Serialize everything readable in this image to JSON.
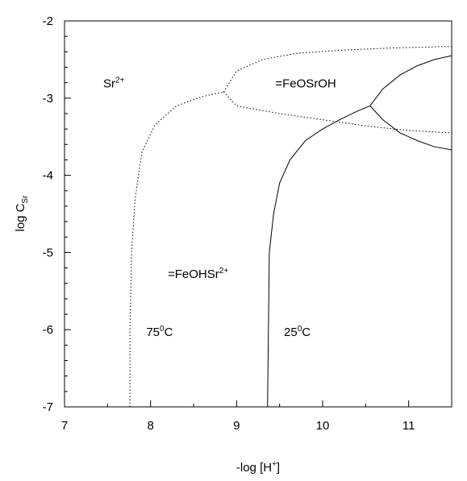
{
  "chart_data": {
    "type": "line",
    "title": "",
    "xlabel": {
      "base": "-log [H",
      "sup": "+",
      "tail": "]"
    },
    "ylabel": {
      "base": "log C",
      "sub": "Sr"
    },
    "xlim": [
      7,
      11.5
    ],
    "ylim": [
      -7,
      -2
    ],
    "x_ticks": [
      "7",
      "8",
      "9",
      "10",
      "11"
    ],
    "y_ticks": [
      "-2",
      "-3",
      "-4",
      "-5",
      "-6",
      "-7"
    ],
    "grid": false,
    "region_labels": [
      {
        "id": "sr2plus",
        "base": "Sr",
        "sup": "2+",
        "x": 7.45,
        "y": -2.86
      },
      {
        "id": "feosroh",
        "base": "=FeOSrOH",
        "sup": "",
        "x": 9.45,
        "y": -2.86
      },
      {
        "id": "feohsr",
        "base": "=FeOHSr",
        "sup": "2+",
        "x": 8.2,
        "y": -5.33
      },
      {
        "id": "t75",
        "base": "75",
        "sup": "0",
        "tail": "C",
        "x": 7.95,
        "y": -6.08
      },
      {
        "id": "t25",
        "base": "25",
        "sup": "0",
        "tail": "C",
        "x": 9.55,
        "y": -6.08
      }
    ],
    "series": [
      {
        "style": "dotted",
        "segments": [
          {
            "x": [
              7.76,
              7.76,
              7.78,
              7.82,
              7.9,
              8.05,
              8.3,
              8.6,
              8.85
            ],
            "y": [
              -7.0,
              -6.0,
              -5.0,
              -4.3,
              -3.7,
              -3.35,
              -3.1,
              -2.98,
              -2.92
            ]
          },
          {
            "x": [
              8.85,
              9.0,
              9.3,
              9.7,
              10.2,
              10.8,
              11.5
            ],
            "y": [
              -2.92,
              -2.65,
              -2.5,
              -2.42,
              -2.38,
              -2.35,
              -2.33
            ]
          },
          {
            "x": [
              8.85,
              9.0,
              9.5,
              10.0,
              10.5,
              11.0,
              11.5
            ],
            "y": [
              -2.92,
              -3.1,
              -3.2,
              -3.28,
              -3.36,
              -3.42,
              -3.45
            ]
          }
        ]
      },
      {
        "style": "solid",
        "segments": [
          {
            "x": [
              9.36,
              9.37,
              9.38,
              9.43,
              9.5,
              9.62,
              9.8,
              10.0,
              10.2,
              10.4,
              10.55
            ],
            "y": [
              -7.0,
              -6.0,
              -5.0,
              -4.5,
              -4.1,
              -3.8,
              -3.55,
              -3.4,
              -3.28,
              -3.17,
              -3.1
            ]
          },
          {
            "x": [
              10.55,
              10.7,
              10.9,
              11.1,
              11.3,
              11.5
            ],
            "y": [
              -3.1,
              -2.88,
              -2.7,
              -2.58,
              -2.5,
              -2.45
            ]
          },
          {
            "x": [
              10.55,
              10.7,
              10.9,
              11.1,
              11.3,
              11.5
            ],
            "y": [
              -3.1,
              -3.28,
              -3.45,
              -3.55,
              -3.63,
              -3.67
            ]
          }
        ]
      }
    ]
  }
}
